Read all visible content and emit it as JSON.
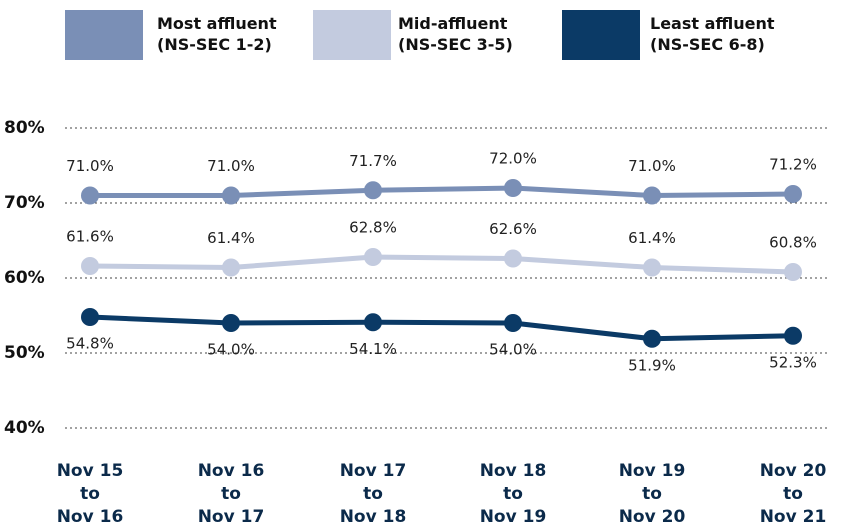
{
  "chart_data": {
    "type": "line",
    "categories": [
      "Nov 15\nto\nNov 16",
      "Nov 16\nto\nNov 17",
      "Nov 17\nto\nNov 18",
      "Nov 18\nto\nNov 19",
      "Nov 19\nto\nNov 20",
      "Nov 20\nto\nNov 21"
    ],
    "series": [
      {
        "name": "Most affluent\n(NS-SEC 1-2)",
        "color": "#7a8fb6",
        "values": [
          71.0,
          71.0,
          71.7,
          72.0,
          71.0,
          71.2
        ],
        "value_labels": [
          "71.0%",
          "71.0%",
          "71.7%",
          "72.0%",
          "71.0%",
          "71.2%"
        ]
      },
      {
        "name": "Mid-affluent\n(NS-SEC 3-5)",
        "color": "#c3cbdf",
        "values": [
          61.6,
          61.4,
          62.8,
          62.6,
          61.4,
          60.8
        ],
        "value_labels": [
          "61.6%",
          "61.4%",
          "62.8%",
          "62.6%",
          "61.4%",
          "60.8%"
        ]
      },
      {
        "name": "Least affluent\n(NS-SEC 6-8)",
        "color": "#0b3a66",
        "values": [
          54.8,
          54.0,
          54.1,
          54.0,
          51.9,
          52.3
        ],
        "value_labels": [
          "54.8%",
          "54.0%",
          "54.1%",
          "54.0%",
          "51.9%",
          "52.3%"
        ]
      }
    ],
    "ylim": [
      40,
      80
    ],
    "yticks": [
      {
        "value": 40,
        "label": "40%"
      },
      {
        "value": 50,
        "label": "50%"
      },
      {
        "value": 60,
        "label": "60%"
      },
      {
        "value": 70,
        "label": "70%"
      },
      {
        "value": 80,
        "label": "80%"
      }
    ],
    "grid": true
  }
}
